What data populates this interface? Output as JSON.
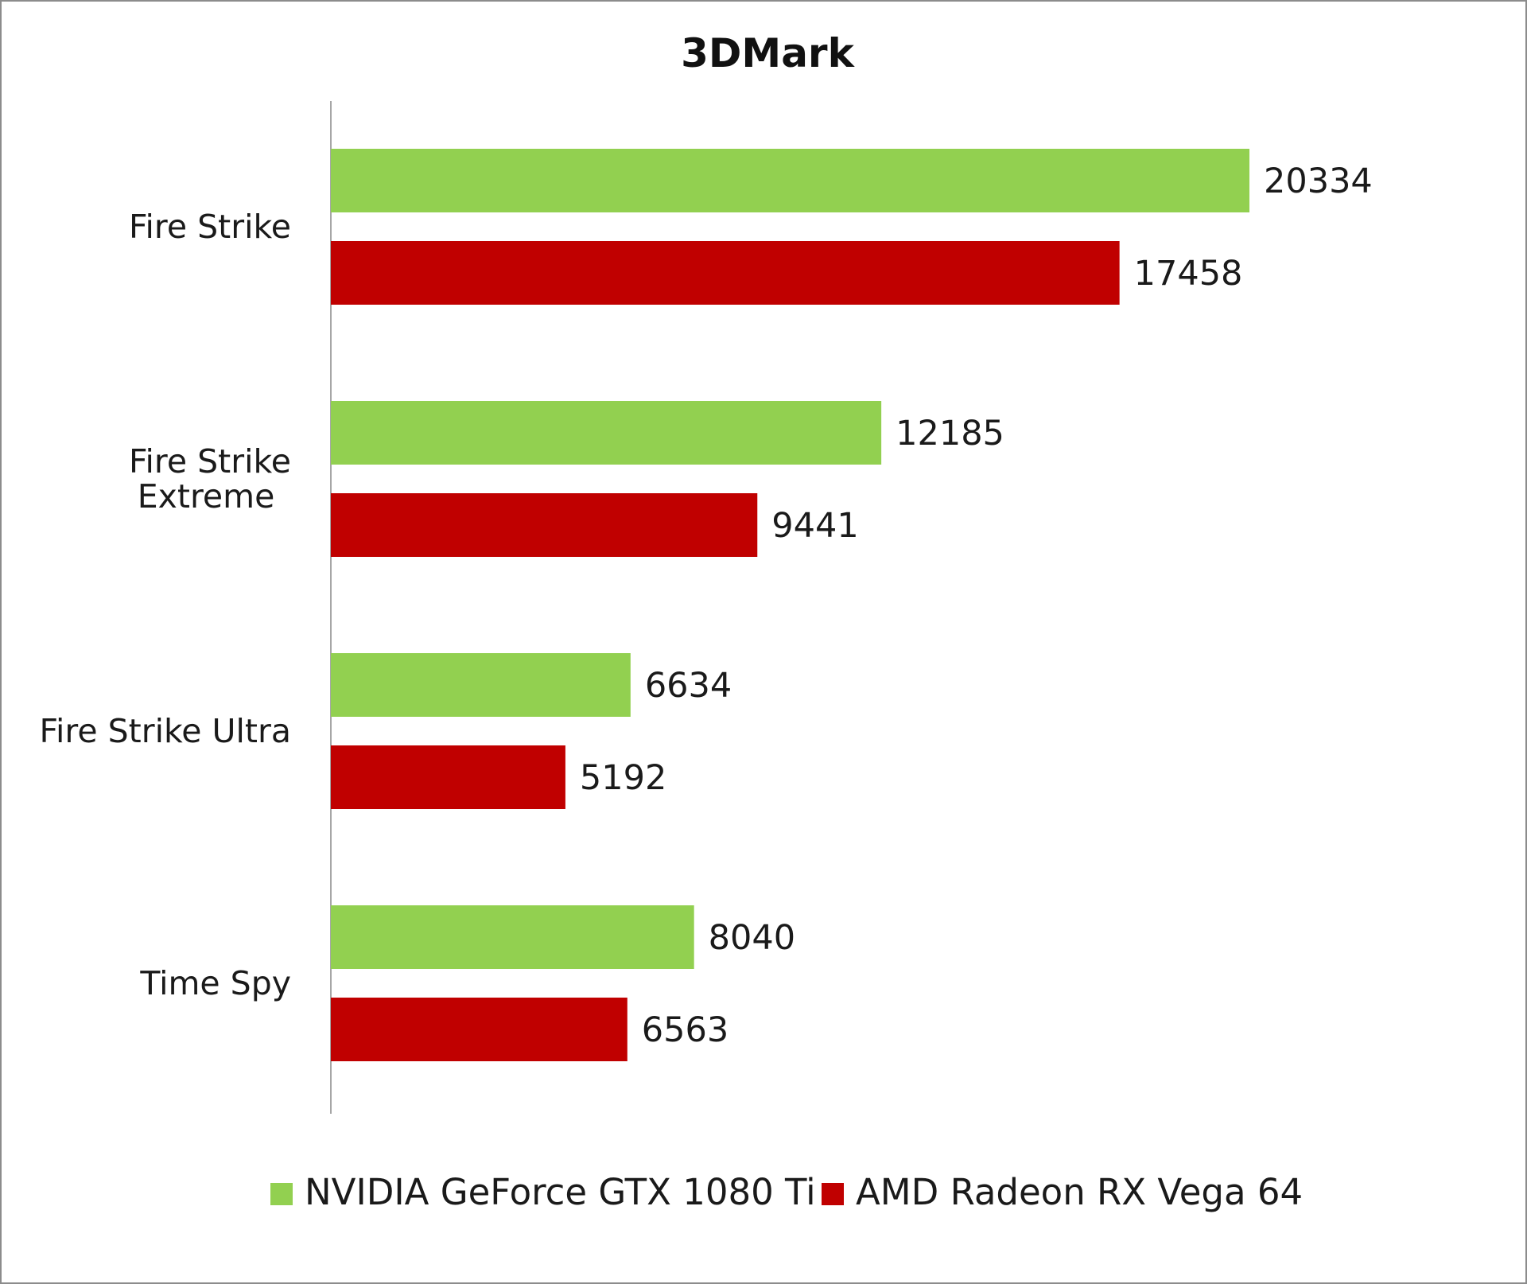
{
  "chart_data": {
    "type": "bar",
    "orientation": "horizontal",
    "title": "3DMark",
    "categories": [
      [
        "Fire Strike"
      ],
      [
        "Fire Strike",
        "Extreme"
      ],
      [
        "Fire Strike Ultra"
      ],
      [
        "Time Spy"
      ]
    ],
    "series": [
      {
        "name": "NVIDIA GeForce GTX 1080 Ti",
        "color": "#92d050",
        "values": [
          20334,
          12185,
          6634,
          8040
        ]
      },
      {
        "name": "AMD Radeon RX Vega 64",
        "color": "#c00000",
        "values": [
          17458,
          9441,
          5192,
          6563
        ]
      }
    ],
    "xlim": [
      0,
      25000
    ],
    "grid": false,
    "legend_position": "bottom",
    "data_labels": true
  }
}
